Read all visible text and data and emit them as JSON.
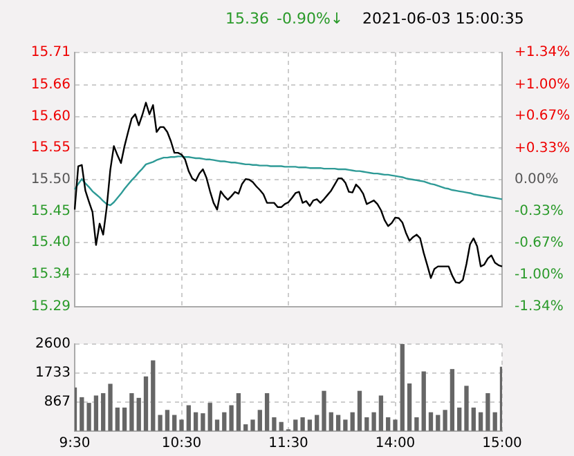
{
  "chart_data": [
    {
      "type": "line",
      "annotations": [
        "15.36",
        "-0.90%↓",
        "2021-06-03 15:00:35"
      ],
      "categories": [
        null,
        null,
        null,
        null,
        null,
        null,
        null,
        null,
        null,
        null,
        null,
        null,
        null,
        null,
        null,
        null,
        null,
        null,
        null,
        null,
        null,
        null,
        null,
        null,
        null,
        null,
        null,
        null,
        null,
        null,
        null,
        null,
        null,
        null,
        null,
        null,
        null,
        null,
        null,
        null,
        null,
        null,
        null,
        null,
        null,
        null,
        null,
        null,
        null,
        null,
        null,
        null,
        null,
        null,
        null,
        null,
        null,
        null,
        null,
        null,
        null,
        null,
        null,
        null,
        null,
        null,
        null,
        null,
        null,
        null,
        null,
        null,
        null,
        null,
        null,
        null,
        null,
        null,
        null,
        null,
        null,
        null,
        null,
        null,
        null,
        null,
        null,
        null,
        null,
        null,
        null,
        null,
        null,
        null,
        null,
        null,
        null,
        null,
        null,
        null,
        null,
        null,
        null,
        null,
        null,
        null,
        null,
        null,
        null,
        null,
        null,
        null,
        null,
        null,
        null,
        null,
        null,
        null,
        null,
        null,
        null
      ],
      "ylim": [
        15.292,
        15.708
      ],
      "yticks": [
        {
          "value": 15.708,
          "label": "15.71"
        },
        {
          "value": 15.655,
          "label": "15.66"
        },
        {
          "value": 15.603,
          "label": "15.60"
        },
        {
          "value": 15.552,
          "label": "15.55"
        },
        {
          "value": 15.5,
          "label": "15.50"
        },
        {
          "value": 15.448,
          "label": "15.45"
        },
        {
          "value": 15.397,
          "label": "15.40"
        },
        {
          "value": 15.345,
          "label": "15.34"
        },
        {
          "value": 15.292,
          "label": "15.29"
        }
      ],
      "y2lim": [
        -1.34,
        1.34
      ],
      "y2ticks": [
        {
          "value": 1.34,
          "label": "+1.34%"
        },
        {
          "value": 1.0,
          "label": "+1.00%"
        },
        {
          "value": 0.67,
          "label": "+0.67%"
        },
        {
          "value": 0.33,
          "label": "+0.33%"
        },
        {
          "value": 0,
          "label": "0.00%"
        },
        {
          "value": -0.33,
          "label": "-0.33%"
        },
        {
          "value": -0.67,
          "label": "-0.67%"
        },
        {
          "value": -1.0,
          "label": "-1.00%"
        },
        {
          "value": -1.34,
          "label": "-1.34%"
        }
      ],
      "grid": true,
      "marker": "none",
      "line_style": "solid",
      "series": [
        {
          "color": "#000000",
          "values": [
            15.451,
            15.522,
            15.524,
            15.482,
            15.464,
            15.447,
            15.393,
            15.428,
            15.41,
            15.455,
            15.516,
            15.555,
            15.54,
            15.527,
            15.555,
            15.578,
            15.6,
            15.607,
            15.589,
            15.606,
            15.626,
            15.607,
            15.622,
            15.578,
            15.586,
            15.586,
            15.578,
            15.563,
            15.544,
            15.544,
            15.541,
            15.533,
            15.514,
            15.502,
            15.498,
            15.51,
            15.517,
            15.503,
            15.481,
            15.462,
            15.451,
            15.481,
            15.473,
            15.467,
            15.473,
            15.48,
            15.477,
            15.493,
            15.501,
            15.5,
            15.496,
            15.489,
            15.483,
            15.476,
            15.462,
            15.462,
            15.462,
            15.455,
            15.455,
            15.46,
            15.463,
            15.47,
            15.478,
            15.48,
            15.462,
            15.465,
            15.457,
            15.466,
            15.468,
            15.462,
            15.468,
            15.475,
            15.482,
            15.492,
            15.502,
            15.502,
            15.495,
            15.48,
            15.479,
            15.492,
            15.486,
            15.477,
            15.46,
            15.463,
            15.466,
            15.46,
            15.45,
            15.434,
            15.424,
            15.429,
            15.438,
            15.437,
            15.43,
            15.413,
            15.4,
            15.406,
            15.41,
            15.404,
            15.38,
            15.36,
            15.339,
            15.354,
            15.358,
            15.358,
            15.358,
            15.358,
            15.343,
            15.332,
            15.331,
            15.336,
            15.362,
            15.394,
            15.404,
            15.391,
            15.358,
            15.361,
            15.371,
            15.376,
            15.364,
            15.36,
            15.358
          ]
        },
        {
          "color": "#2e9a96",
          "values": [
            15.484,
            15.493,
            15.501,
            15.494,
            15.488,
            15.481,
            15.476,
            15.471,
            15.465,
            15.46,
            15.458,
            15.463,
            15.47,
            15.477,
            15.485,
            15.492,
            15.499,
            15.505,
            15.512,
            15.518,
            15.525,
            15.527,
            15.529,
            15.532,
            15.534,
            15.536,
            15.536,
            15.537,
            15.537,
            15.538,
            15.538,
            15.537,
            15.537,
            15.536,
            15.535,
            15.535,
            15.534,
            15.533,
            15.533,
            15.532,
            15.531,
            15.53,
            15.53,
            15.529,
            15.528,
            15.528,
            15.527,
            15.526,
            15.525,
            15.525,
            15.524,
            15.524,
            15.523,
            15.523,
            15.523,
            15.522,
            15.522,
            15.522,
            15.522,
            15.521,
            15.521,
            15.521,
            15.521,
            15.52,
            15.52,
            15.52,
            15.519,
            15.519,
            15.519,
            15.519,
            15.518,
            15.518,
            15.518,
            15.518,
            15.517,
            15.517,
            15.517,
            15.516,
            15.515,
            15.514,
            15.514,
            15.513,
            15.512,
            15.511,
            15.51,
            15.51,
            15.509,
            15.508,
            15.508,
            15.507,
            15.506,
            15.505,
            15.504,
            15.502,
            15.501,
            15.5,
            15.499,
            15.498,
            15.497,
            15.495,
            15.493,
            15.492,
            15.49,
            15.488,
            15.486,
            15.485,
            15.483,
            15.482,
            15.481,
            15.48,
            15.479,
            15.478,
            15.476,
            15.475,
            15.474,
            15.473,
            15.472,
            15.471,
            15.47,
            15.469,
            15.468
          ]
        }
      ]
    },
    {
      "type": "bar",
      "categories": [
        "9:30",
        null,
        null,
        null,
        null,
        null,
        null,
        null,
        null,
        null,
        null,
        null,
        null,
        null,
        null,
        "10:30",
        null,
        null,
        null,
        null,
        null,
        null,
        null,
        null,
        null,
        null,
        null,
        null,
        null,
        null,
        "11:30",
        null,
        null,
        null,
        null,
        null,
        null,
        null,
        null,
        null,
        null,
        null,
        null,
        null,
        null,
        "14:00",
        null,
        null,
        null,
        null,
        null,
        null,
        null,
        null,
        null,
        null,
        null,
        null,
        null,
        null,
        "15:00"
      ],
      "ylim": [
        0,
        2600
      ],
      "yticks": [
        {
          "value": 0,
          "label": null
        },
        867,
        1733,
        2600
      ],
      "grid": true,
      "color": "#666666",
      "values": [
        1290,
        1000,
        830,
        1050,
        1120,
        1400,
        690,
        690,
        1120,
        980,
        1620,
        2100,
        470,
        620,
        470,
        330,
        760,
        550,
        520,
        830,
        330,
        550,
        760,
        1120,
        190,
        330,
        620,
        1120,
        400,
        260,
        40,
        330,
        400,
        330,
        470,
        1190,
        550,
        470,
        330,
        550,
        1190,
        400,
        550,
        1050,
        400,
        330,
        2590,
        1410,
        400,
        1770,
        550,
        470,
        620,
        1840,
        690,
        1340,
        690,
        550,
        1120,
        550,
        1910
      ]
    }
  ]
}
